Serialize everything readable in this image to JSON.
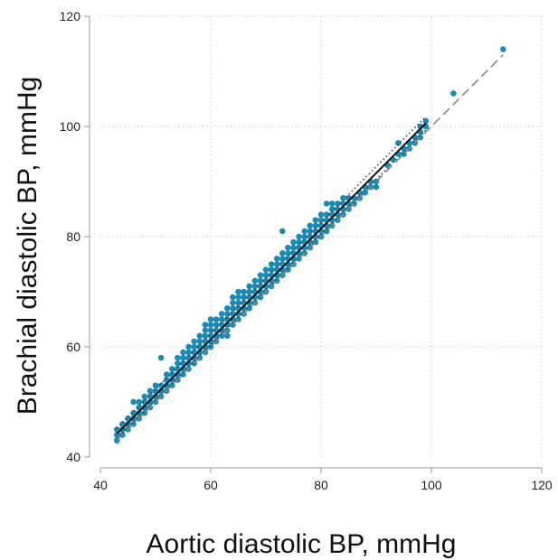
{
  "chart_data": {
    "type": "scatter",
    "title": "",
    "xlabel": "Aortic diastolic BP, mmHg",
    "ylabel": "Brachial diastolic BP, mmHg",
    "xlim": [
      40,
      120
    ],
    "ylim": [
      40,
      120
    ],
    "xticks": [
      40,
      60,
      80,
      100,
      120
    ],
    "yticks": [
      40,
      60,
      80,
      100,
      120
    ],
    "grid": true,
    "legend": "none",
    "colors": {
      "points": "#1a8bb5",
      "fit": "#111111",
      "ci": "#444444",
      "identity": "#888888",
      "grid": "#c8c8c8"
    },
    "lines": [
      {
        "style": "solid",
        "x": [
          43,
          99
        ],
        "y": [
          44.2,
          100.6
        ]
      },
      {
        "style": "dotted",
        "x": [
          43,
          99
        ],
        "y": [
          45.2,
          101.8
        ]
      },
      {
        "style": "dotted",
        "x": [
          43,
          99
        ],
        "y": [
          43.3,
          99.4
        ]
      },
      {
        "style": "dashed",
        "x": [
          43,
          113
        ],
        "y": [
          43,
          113
        ]
      }
    ],
    "points": [
      [
        43,
        43
      ],
      [
        43,
        44
      ],
      [
        43,
        45
      ],
      [
        44,
        44
      ],
      [
        44,
        45
      ],
      [
        44,
        46
      ],
      [
        45,
        45
      ],
      [
        45,
        46
      ],
      [
        45,
        47
      ],
      [
        46,
        46
      ],
      [
        46,
        47
      ],
      [
        46,
        48
      ],
      [
        46,
        50
      ],
      [
        47,
        47
      ],
      [
        47,
        48
      ],
      [
        47,
        49
      ],
      [
        47,
        50
      ],
      [
        48,
        48
      ],
      [
        48,
        49
      ],
      [
        48,
        50
      ],
      [
        48,
        51
      ],
      [
        49,
        49
      ],
      [
        49,
        50
      ],
      [
        49,
        51
      ],
      [
        49,
        52
      ],
      [
        50,
        50
      ],
      [
        50,
        51
      ],
      [
        50,
        52
      ],
      [
        50,
        53
      ],
      [
        51,
        51
      ],
      [
        51,
        52
      ],
      [
        51,
        53
      ],
      [
        51,
        58
      ],
      [
        52,
        52
      ],
      [
        52,
        53
      ],
      [
        52,
        54
      ],
      [
        52,
        55
      ],
      [
        53,
        53
      ],
      [
        53,
        54
      ],
      [
        53,
        55
      ],
      [
        53,
        56
      ],
      [
        54,
        54
      ],
      [
        54,
        55
      ],
      [
        54,
        56
      ],
      [
        54,
        57
      ],
      [
        54,
        58
      ],
      [
        55,
        55
      ],
      [
        55,
        56
      ],
      [
        55,
        57
      ],
      [
        55,
        58
      ],
      [
        55,
        59
      ],
      [
        56,
        56
      ],
      [
        56,
        57
      ],
      [
        56,
        58
      ],
      [
        56,
        59
      ],
      [
        56,
        60
      ],
      [
        57,
        57
      ],
      [
        57,
        58
      ],
      [
        57,
        59
      ],
      [
        57,
        60
      ],
      [
        57,
        61
      ],
      [
        58,
        58
      ],
      [
        58,
        59
      ],
      [
        58,
        60
      ],
      [
        58,
        61
      ],
      [
        58,
        62
      ],
      [
        59,
        59
      ],
      [
        59,
        60
      ],
      [
        59,
        61
      ],
      [
        59,
        62
      ],
      [
        59,
        63
      ],
      [
        59,
        64
      ],
      [
        60,
        60
      ],
      [
        60,
        61
      ],
      [
        60,
        62
      ],
      [
        60,
        63
      ],
      [
        60,
        64
      ],
      [
        60,
        65
      ],
      [
        61,
        61
      ],
      [
        61,
        62
      ],
      [
        61,
        63
      ],
      [
        61,
        64
      ],
      [
        61,
        65
      ],
      [
        62,
        62
      ],
      [
        62,
        63
      ],
      [
        62,
        64
      ],
      [
        62,
        65
      ],
      [
        62,
        66
      ],
      [
        63,
        62
      ],
      [
        63,
        63
      ],
      [
        63,
        64
      ],
      [
        63,
        65
      ],
      [
        63,
        66
      ],
      [
        63,
        67
      ],
      [
        64,
        64
      ],
      [
        64,
        65
      ],
      [
        64,
        66
      ],
      [
        64,
        67
      ],
      [
        64,
        68
      ],
      [
        64,
        69
      ],
      [
        65,
        65
      ],
      [
        65,
        66
      ],
      [
        65,
        67
      ],
      [
        65,
        68
      ],
      [
        65,
        69
      ],
      [
        65,
        70
      ],
      [
        66,
        66
      ],
      [
        66,
        67
      ],
      [
        66,
        68
      ],
      [
        66,
        69
      ],
      [
        66,
        70
      ],
      [
        67,
        67
      ],
      [
        67,
        68
      ],
      [
        67,
        69
      ],
      [
        67,
        70
      ],
      [
        67,
        71
      ],
      [
        68,
        68
      ],
      [
        68,
        69
      ],
      [
        68,
        70
      ],
      [
        68,
        71
      ],
      [
        68,
        72
      ],
      [
        69,
        69
      ],
      [
        69,
        70
      ],
      [
        69,
        71
      ],
      [
        69,
        72
      ],
      [
        69,
        73
      ],
      [
        70,
        70
      ],
      [
        70,
        71
      ],
      [
        70,
        72
      ],
      [
        70,
        73
      ],
      [
        70,
        74
      ],
      [
        71,
        71
      ],
      [
        71,
        72
      ],
      [
        71,
        73
      ],
      [
        71,
        74
      ],
      [
        71,
        75
      ],
      [
        72,
        72
      ],
      [
        72,
        73
      ],
      [
        72,
        74
      ],
      [
        72,
        75
      ],
      [
        72,
        76
      ],
      [
        73,
        73
      ],
      [
        73,
        74
      ],
      [
        73,
        75
      ],
      [
        73,
        76
      ],
      [
        73,
        77
      ],
      [
        73,
        81
      ],
      [
        74,
        74
      ],
      [
        74,
        75
      ],
      [
        74,
        76
      ],
      [
        74,
        77
      ],
      [
        74,
        78
      ],
      [
        75,
        75
      ],
      [
        75,
        76
      ],
      [
        75,
        77
      ],
      [
        75,
        78
      ],
      [
        75,
        79
      ],
      [
        76,
        76
      ],
      [
        76,
        77
      ],
      [
        76,
        78
      ],
      [
        76,
        79
      ],
      [
        76,
        80
      ],
      [
        77,
        77
      ],
      [
        77,
        78
      ],
      [
        77,
        79
      ],
      [
        77,
        80
      ],
      [
        77,
        81
      ],
      [
        78,
        78
      ],
      [
        78,
        79
      ],
      [
        78,
        80
      ],
      [
        78,
        81
      ],
      [
        78,
        82
      ],
      [
        79,
        79
      ],
      [
        79,
        80
      ],
      [
        79,
        81
      ],
      [
        79,
        82
      ],
      [
        79,
        83
      ],
      [
        80,
        80
      ],
      [
        80,
        81
      ],
      [
        80,
        82
      ],
      [
        80,
        83
      ],
      [
        80,
        84
      ],
      [
        81,
        81
      ],
      [
        81,
        82
      ],
      [
        81,
        83
      ],
      [
        81,
        84
      ],
      [
        81,
        86
      ],
      [
        82,
        82
      ],
      [
        82,
        83
      ],
      [
        82,
        84
      ],
      [
        82,
        85
      ],
      [
        82,
        86
      ],
      [
        83,
        83
      ],
      [
        83,
        84
      ],
      [
        83,
        85
      ],
      [
        83,
        86
      ],
      [
        84,
        84
      ],
      [
        84,
        85
      ],
      [
        84,
        86
      ],
      [
        84,
        87
      ],
      [
        85,
        85
      ],
      [
        85,
        86
      ],
      [
        85,
        87
      ],
      [
        86,
        86
      ],
      [
        86,
        87
      ],
      [
        87,
        87
      ],
      [
        87,
        88
      ],
      [
        88,
        88
      ],
      [
        88,
        89
      ],
      [
        89,
        89
      ],
      [
        89,
        90
      ],
      [
        90,
        89
      ],
      [
        90,
        90
      ],
      [
        92,
        93
      ],
      [
        93,
        94
      ],
      [
        94,
        95
      ],
      [
        94,
        97
      ],
      [
        95,
        95
      ],
      [
        95,
        96
      ],
      [
        96,
        96
      ],
      [
        96,
        97
      ],
      [
        97,
        97
      ],
      [
        97,
        98
      ],
      [
        98,
        98
      ],
      [
        98,
        99
      ],
      [
        98,
        100
      ],
      [
        99,
        100
      ],
      [
        99,
        101
      ],
      [
        104,
        106
      ],
      [
        113,
        114
      ]
    ]
  }
}
